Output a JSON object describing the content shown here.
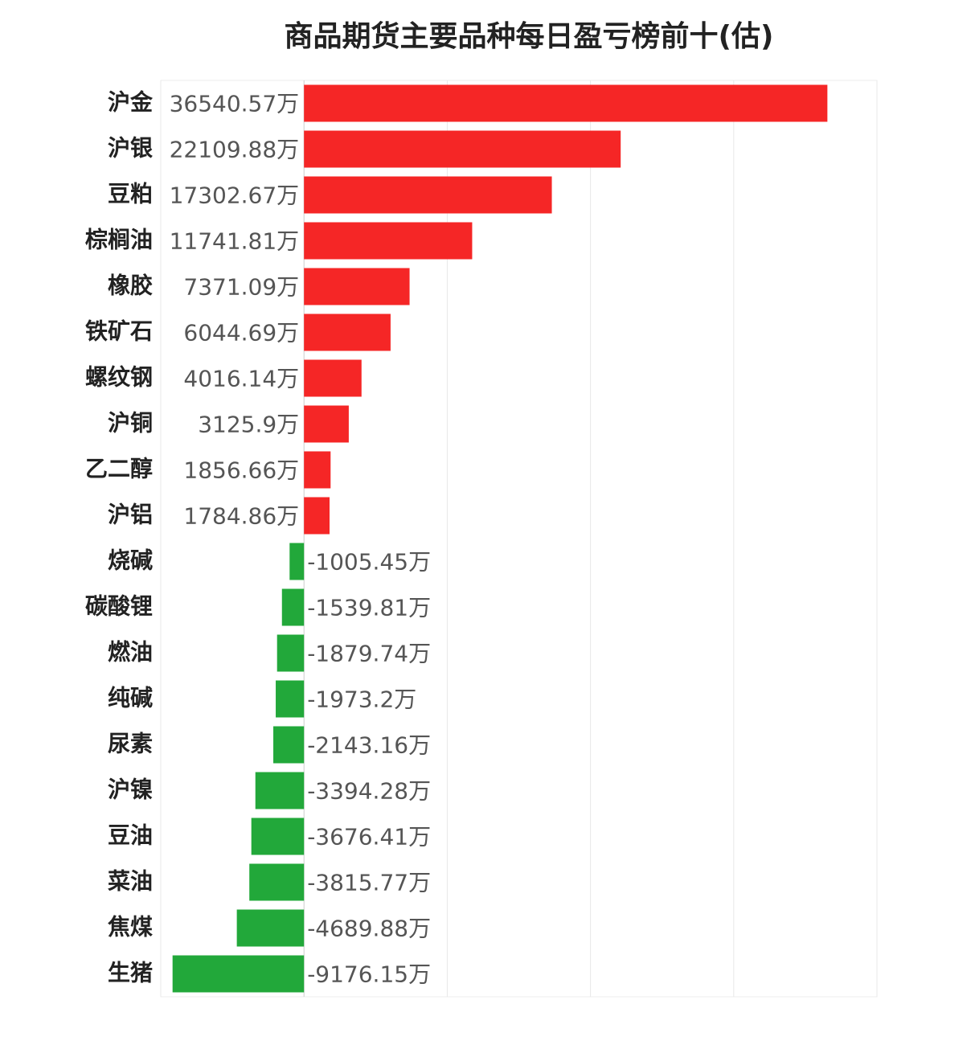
{
  "chart_data": {
    "type": "hbar",
    "title": "商品期货主要品种每日盈亏榜前十(估)",
    "categories": [
      "沪金",
      "沪银",
      "豆粕",
      "棕榈油",
      "橡胶",
      "铁矿石",
      "螺纹钢",
      "沪铜",
      "乙二醇",
      "沪铝",
      "烧碱",
      "碳酸锂",
      "燃油",
      "纯碱",
      "尿素",
      "沪镍",
      "豆油",
      "菜油",
      "焦煤",
      "生猪"
    ],
    "values": [
      36540.57,
      22109.88,
      17302.67,
      11741.81,
      7371.09,
      6044.69,
      4016.14,
      3125.9,
      1856.66,
      1784.86,
      -1005.45,
      -1539.81,
      -1879.74,
      -1973.2,
      -2143.16,
      -3394.28,
      -3676.41,
      -3815.77,
      -4689.88,
      -9176.15
    ],
    "value_labels": [
      "36540.57万",
      "22109.88万",
      "17302.67万",
      "11741.81万",
      "7371.09万",
      "6044.69万",
      "4016.14万",
      "3125.9万",
      "1856.66万",
      "1784.86万",
      "-1005.45万",
      "-1539.81万",
      "-1879.74万",
      "-1973.2万",
      "-2143.16万",
      "-3394.28万",
      "-3676.41万",
      "-3815.77万",
      "-4689.88万",
      "-9176.15万"
    ],
    "colors": [
      "#f52626",
      "#f52626",
      "#f52626",
      "#f52626",
      "#f52626",
      "#f52626",
      "#f52626",
      "#f52626",
      "#f52626",
      "#f52626",
      "#22a83a",
      "#22a83a",
      "#22a83a",
      "#22a83a",
      "#22a83a",
      "#22a83a",
      "#22a83a",
      "#22a83a",
      "#22a83a",
      "#22a83a"
    ],
    "xlim": [
      -10000,
      40000
    ],
    "xticks": [
      -10000,
      0,
      10000,
      20000,
      30000,
      40000
    ],
    "grid": true
  }
}
